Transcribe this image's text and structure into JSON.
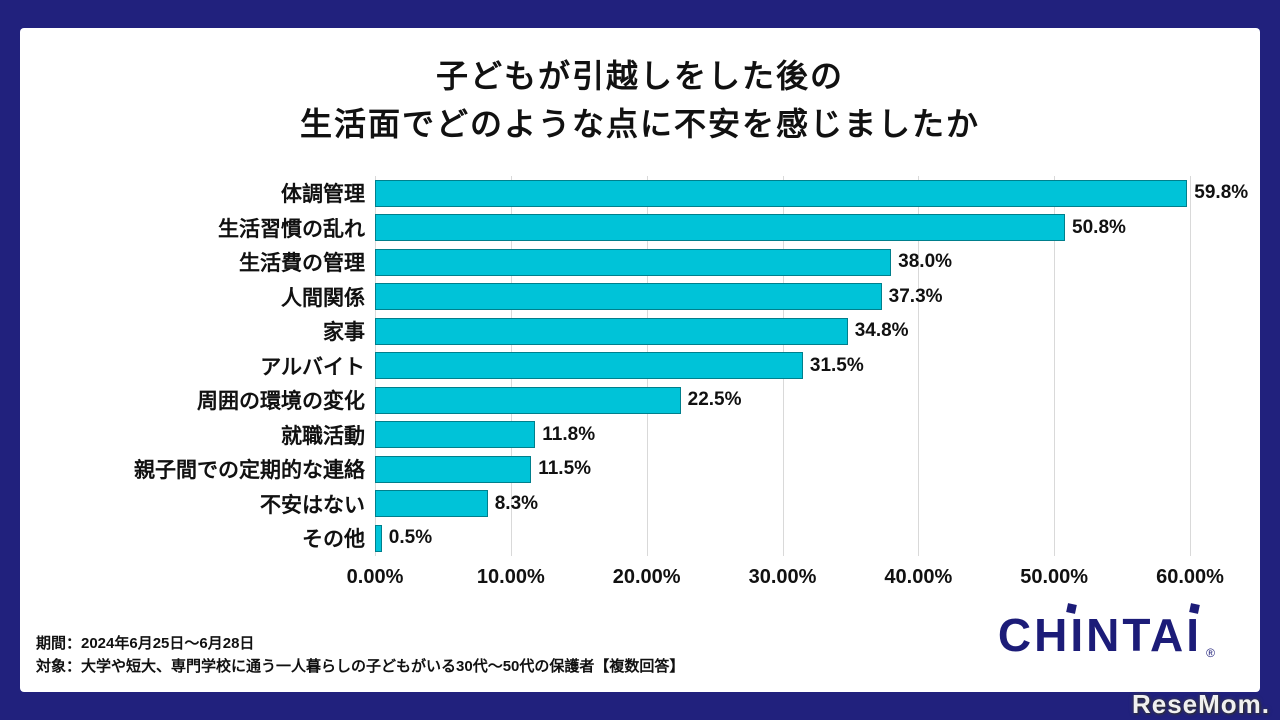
{
  "page": {
    "border_color": "#21217d",
    "panel_color": "#ffffff"
  },
  "title": {
    "line1": "子どもが引越しをした後の",
    "line2": "生活面でどのような点に不安を感じましたか"
  },
  "chart_data": {
    "type": "bar",
    "orientation": "horizontal",
    "title": "子どもが引越しをした後の生活面でどのような点に不安を感じましたか",
    "categories": [
      "体調管理",
      "生活習慣の乱れ",
      "生活費の管理",
      "人間関係",
      "家事",
      "アルバイト",
      "周囲の環境の変化",
      "就職活動",
      "親子間での定期的な連絡",
      "不安はない",
      "その他"
    ],
    "values": [
      59.8,
      50.8,
      38.0,
      37.3,
      34.8,
      31.5,
      22.5,
      11.8,
      11.5,
      8.3,
      0.5
    ],
    "value_labels": [
      "59.8%",
      "50.8%",
      "38.0%",
      "37.3%",
      "34.8%",
      "31.5%",
      "22.5%",
      "11.8%",
      "11.5%",
      "8.3%",
      "0.5%"
    ],
    "xlim": [
      0,
      60
    ],
    "x_ticks": [
      "0.00%",
      "10.00%",
      "20.00%",
      "30.00%",
      "40.00%",
      "50.00%",
      "60.00%"
    ],
    "bar_color": "#00c3d8",
    "grid": true,
    "gridline_color": "#d9d9d9",
    "legend": "none"
  },
  "footer": {
    "line1": "期間：2024年6月25日〜6月28日",
    "line2": "対象：大学や短大、専門学校に通う一人暮らしの子どもがいる30代〜50代の保護者【複数回答】"
  },
  "logos": {
    "chintai": "CHINTAI",
    "chintai_registered": "®",
    "resemom": "ReseMom."
  }
}
